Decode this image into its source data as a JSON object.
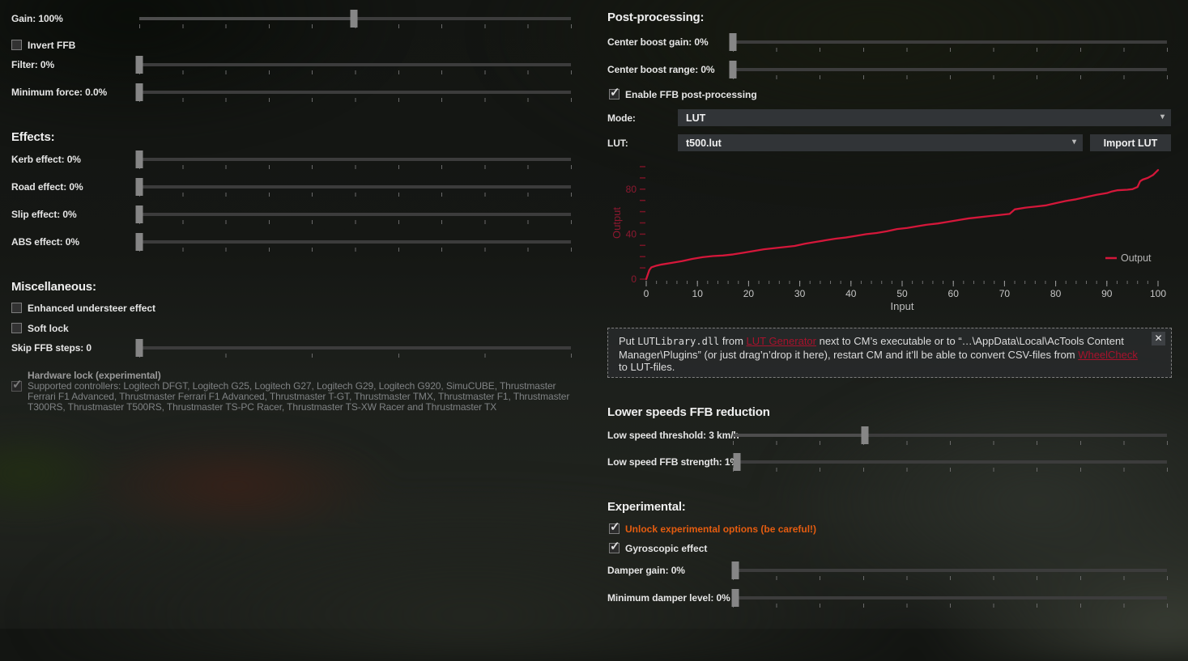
{
  "colors": {
    "accent": "#d4173a",
    "axis_red": "#8d1830",
    "link_red": "#a8122c",
    "orange": "#e55c10"
  },
  "left": {
    "gain": {
      "label": "Gain: 100%",
      "fraction": 0.497
    },
    "invert_ffb": {
      "label": "Invert FFB",
      "checked": false
    },
    "filter": {
      "label": "Filter: 0%",
      "fraction": 0
    },
    "minimum_force": {
      "label": "Minimum force: 0.0%",
      "fraction": 0
    },
    "effects_heading": "Effects:",
    "kerb_effect": {
      "label": "Kerb effect: 0%",
      "fraction": 0
    },
    "road_effect": {
      "label": "Road effect: 0%",
      "fraction": 0
    },
    "slip_effect": {
      "label": "Slip effect: 0%",
      "fraction": 0
    },
    "abs_effect": {
      "label": "ABS effect: 0%",
      "fraction": 0
    },
    "misc_heading": "Miscellaneous:",
    "enhanced_understeer": {
      "label": "Enhanced understeer effect",
      "checked": false
    },
    "soft_lock": {
      "label": "Soft lock",
      "checked": false
    },
    "skip_ffb_steps": {
      "label": "Skip FFB steps: 0",
      "fraction": 0
    },
    "hardware_lock_label": "Hardware lock (experimental)",
    "supported_controllers": {
      "checked": true,
      "text": "Supported controllers: Logitech DFGT, Logitech G25, Logitech G27, Logitech G29, Logitech G920, SimuCUBE, Thrustmaster Ferrari F1 Advanced, Thrustmaster Ferrari F1 Advanced, Thrustmaster T-GT, Thrustmaster TMX, Thrustmaster F1, Thrustmaster T300RS, Thrustmaster T500RS, Thrustmaster TS-PC Racer, Thrustmaster TS-XW Racer and Thrustmaster TX"
    }
  },
  "right": {
    "post_heading": "Post-processing:",
    "center_boost_gain": {
      "label": "Center boost gain: 0%",
      "fraction": 0
    },
    "center_boost_range": {
      "label": "Center boost range: 0%",
      "fraction": 0
    },
    "enable_post": {
      "label": "Enable FFB post-processing",
      "checked": true
    },
    "mode": {
      "label": "Mode:",
      "value": "LUT"
    },
    "lut": {
      "label": "LUT:",
      "value": "t500.lut"
    },
    "import_button": "Import LUT",
    "info": {
      "close_glyph": "✕",
      "parts": [
        {
          "text": "Put "
        },
        {
          "text": "LUTLibrary.dll",
          "style": "code"
        },
        {
          "text": " from "
        },
        {
          "text": "LUT Generator",
          "style": "link"
        },
        {
          "text": " next to CM’s executable or to “…\\AppData\\Local\\AcTools Content Manager\\Plugins” (or just drag’n’drop it here), restart CM and it’ll be able to convert CSV-files from "
        },
        {
          "text": "WheelCheck",
          "style": "link"
        },
        {
          "text": " to LUT-files."
        }
      ]
    },
    "lower_heading": "Lower speeds FFB reduction",
    "low_speed_threshold": {
      "label": "Low speed threshold: 3 km/h",
      "fraction": 0.304
    },
    "low_speed_strength": {
      "label": "Low speed FFB strength: 1%",
      "fraction": 0.01
    },
    "experimental_heading": "Experimental:",
    "unlock_experimental": {
      "label": "Unlock experimental options (be careful!)",
      "checked": true
    },
    "gyroscopic": {
      "label": "Gyroscopic effect",
      "checked": true
    },
    "damper_gain": {
      "label": "Damper gain: 0%",
      "fraction": 0.005
    },
    "min_damper": {
      "label": "Minimum damper level: 0%",
      "fraction": 0.005
    }
  },
  "chart_data": {
    "type": "line",
    "title": "",
    "xlabel": "Input",
    "ylabel": "Output",
    "xlim": [
      0,
      100
    ],
    "ylim": [
      0,
      100
    ],
    "x_major_ticks": [
      0,
      10,
      20,
      30,
      40,
      50,
      60,
      70,
      80,
      90,
      100
    ],
    "x_minor_step": 2,
    "y_tick_step": 10,
    "y_tick_labels": [
      0,
      40,
      80
    ],
    "grid": false,
    "legend_position": "right-middle",
    "series": [
      {
        "name": "Output",
        "color": "#d4173a",
        "points": [
          [
            0,
            0
          ],
          [
            0.6,
            8
          ],
          [
            1,
            10.5
          ],
          [
            2,
            12
          ],
          [
            3,
            13
          ],
          [
            5,
            14.5
          ],
          [
            7,
            16
          ],
          [
            9,
            18
          ],
          [
            11,
            19.5
          ],
          [
            13,
            20.5
          ],
          [
            15,
            21
          ],
          [
            17,
            22
          ],
          [
            19,
            23.5
          ],
          [
            21,
            25
          ],
          [
            23,
            26.5
          ],
          [
            25,
            27.5
          ],
          [
            27,
            28.5
          ],
          [
            29,
            29.5
          ],
          [
            31,
            31.5
          ],
          [
            33,
            33
          ],
          [
            35,
            34.5
          ],
          [
            37,
            36
          ],
          [
            39,
            37
          ],
          [
            41,
            38.5
          ],
          [
            43,
            40
          ],
          [
            45,
            41
          ],
          [
            47,
            42.5
          ],
          [
            49,
            44.5
          ],
          [
            51,
            45.5
          ],
          [
            53,
            47
          ],
          [
            55,
            48.5
          ],
          [
            57,
            49.5
          ],
          [
            59,
            51
          ],
          [
            61,
            52.5
          ],
          [
            63,
            54
          ],
          [
            65,
            55
          ],
          [
            67,
            56
          ],
          [
            69,
            57
          ],
          [
            71,
            58
          ],
          [
            72,
            62
          ],
          [
            74,
            63.5
          ],
          [
            76,
            64.5
          ],
          [
            78,
            65.5
          ],
          [
            80,
            67.5
          ],
          [
            82,
            69.5
          ],
          [
            84,
            71
          ],
          [
            86,
            73
          ],
          [
            88,
            75
          ],
          [
            90,
            76.5
          ],
          [
            91,
            78
          ],
          [
            92,
            79
          ],
          [
            94,
            79.5
          ],
          [
            95,
            80
          ],
          [
            96,
            82
          ],
          [
            96.5,
            87
          ],
          [
            97,
            88.5
          ],
          [
            98,
            90
          ],
          [
            99,
            92.5
          ],
          [
            100,
            97
          ]
        ]
      }
    ]
  }
}
